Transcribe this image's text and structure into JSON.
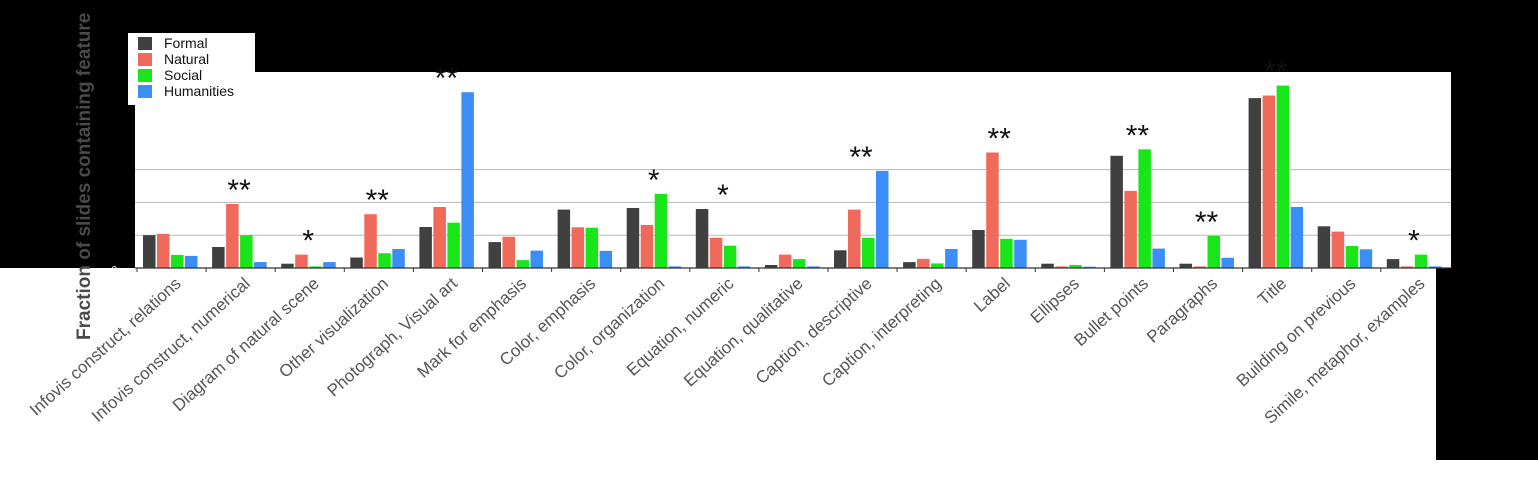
{
  "chart_data": {
    "type": "bar",
    "ylabel": "Fraction of slides containing feature",
    "ylim": [
      0,
      0.6
    ],
    "grid": true,
    "y_ticks": [
      "0"
    ],
    "legend_position": "top-left",
    "categories": [
      "Infovis construct, relations",
      "Infovis construct, numerical",
      "Diagram of natural scene",
      "Other visualization",
      "Photograph, Visual art",
      "Mark for emphasis",
      "Color, emphasis",
      "Color, organization",
      "Equation, numeric",
      "Equation, qualitative",
      "Caption, descriptive",
      "Caption, interpreting",
      "Label",
      "Ellipses",
      "Bullet points",
      "Paragraphs",
      "Title",
      "Building on previous",
      "Simile, metaphor, examples"
    ],
    "series": [
      {
        "name": "Formal",
        "color": "#404040",
        "values": [
          0.1,
          0.064,
          0.013,
          0.032,
          0.125,
          0.079,
          0.178,
          0.183,
          0.18,
          0.009,
          0.054,
          0.018,
          0.116,
          0.013,
          0.342,
          0.013,
          0.518,
          0.127,
          0.027
        ]
      },
      {
        "name": "Natural",
        "color": "#ef6a5a",
        "values": [
          0.104,
          0.195,
          0.041,
          0.164,
          0.186,
          0.095,
          0.124,
          0.131,
          0.092,
          0.041,
          0.178,
          0.028,
          0.352,
          0.005,
          0.235,
          0.005,
          0.526,
          0.111,
          0.005
        ]
      },
      {
        "name": "Social",
        "color": "#19e619",
        "values": [
          0.04,
          0.1,
          0.005,
          0.045,
          0.138,
          0.024,
          0.123,
          0.226,
          0.068,
          0.027,
          0.092,
          0.014,
          0.089,
          0.009,
          0.362,
          0.098,
          0.556,
          0.067,
          0.041
        ]
      },
      {
        "name": "Humanities",
        "color": "#3a8ef5",
        "values": [
          0.037,
          0.018,
          0.018,
          0.058,
          0.536,
          0.053,
          0.052,
          0.005,
          0.005,
          0.005,
          0.296,
          0.058,
          0.086,
          0.004,
          0.059,
          0.031,
          0.186,
          0.057,
          0.005
        ]
      }
    ],
    "significance": [
      "",
      "**",
      "*",
      "**",
      "**",
      "",
      "",
      "*",
      "*",
      "",
      "**",
      "",
      "**",
      "",
      "**",
      "**",
      "**",
      "",
      "*"
    ]
  }
}
